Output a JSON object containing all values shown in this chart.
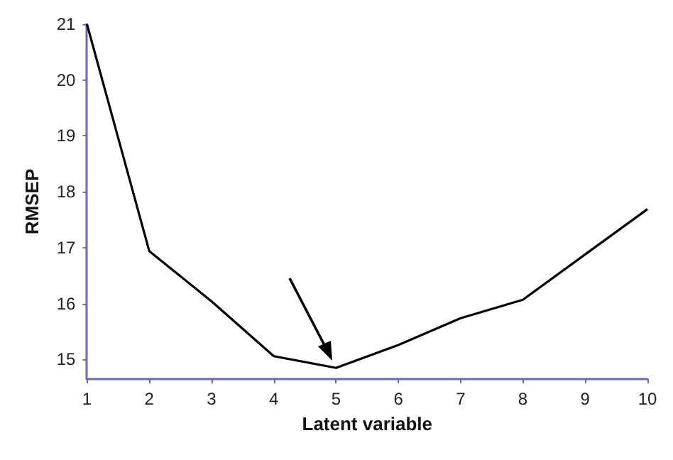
{
  "chart_data": {
    "type": "line",
    "xlabel": "Latent variable",
    "ylabel": "RMSEP",
    "x": [
      1,
      2,
      3,
      4,
      5,
      6,
      7,
      8,
      9,
      10
    ],
    "series": [
      {
        "color": "#000000",
        "values": [
          21.0,
          16.94,
          16.04,
          15.06,
          14.85,
          15.26,
          15.74,
          16.07,
          16.88,
          17.69
        ]
      }
    ],
    "xlim": [
      1,
      10
    ],
    "xticks": [
      1,
      2,
      3,
      4,
      5,
      6,
      7,
      8,
      9,
      10
    ],
    "ylim": [
      14.65,
      21
    ],
    "yticks": [
      15,
      16,
      17,
      18,
      19,
      20,
      21
    ],
    "grid": false,
    "marker": "none",
    "line_style": "solid"
  }
}
